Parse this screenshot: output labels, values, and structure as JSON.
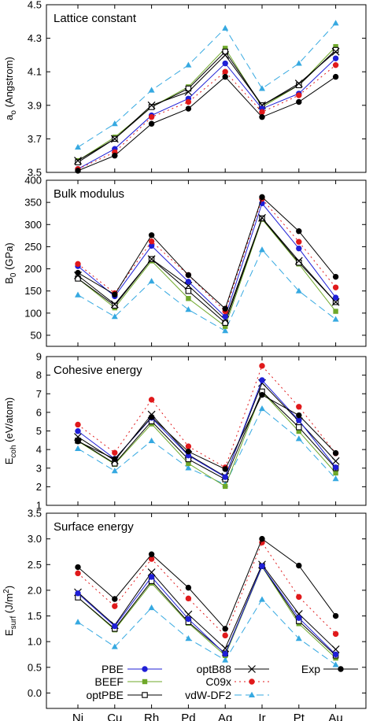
{
  "chart_data": {
    "type": "line",
    "categories": [
      "Ni",
      "Cu",
      "Rh",
      "Pd",
      "Ag",
      "Ir",
      "Pt",
      "Au"
    ],
    "legend": {
      "placement": "bottom of last panel",
      "entries": [
        "PBE",
        "optB88",
        "Exp",
        "BEEF",
        "C09x",
        "optPBE",
        "vdW-DF2"
      ]
    },
    "styles": {
      "PBE": {
        "color": "#1f1fd6",
        "marker": "filled-circle",
        "dash": "solid"
      },
      "optB88": {
        "color": "#000000",
        "marker": "x",
        "dash": "solid"
      },
      "Exp": {
        "color": "#000000",
        "marker": "filled-circle",
        "dash": "solid"
      },
      "BEEF": {
        "color": "#6fa82a",
        "marker": "filled-square",
        "dash": "solid"
      },
      "C09x": {
        "color": "#e0191b",
        "marker": "filled-circle",
        "dash": "dotted"
      },
      "optPBE": {
        "color": "#000000",
        "marker": "open-square",
        "dash": "solid"
      },
      "vdW-DF2": {
        "color": "#36a9e1",
        "marker": "filled-triangle",
        "dash": "dashed"
      }
    },
    "panels": [
      {
        "title": "Lattice constant",
        "ylabel_main": "a",
        "ylabel_sub": "o",
        "ylabel_rest": " (Angstrom)",
        "ylim": [
          3.5,
          4.5
        ],
        "yticks": [
          "3.5",
          "3.7",
          "3.9",
          "4.1",
          "4.3",
          "4.5"
        ],
        "series": [
          {
            "name": "vdW-DF2",
            "values": [
              3.65,
              3.79,
              3.99,
              4.14,
              4.36,
              4.0,
              4.15,
              4.39
            ]
          },
          {
            "name": "BEEF",
            "values": [
              3.57,
              3.71,
              3.89,
              4.01,
              4.24,
              3.89,
              4.02,
              4.25
            ]
          },
          {
            "name": "optPBE",
            "values": [
              3.56,
              3.7,
              3.89,
              4.0,
              4.22,
              3.9,
              4.02,
              4.23
            ]
          },
          {
            "name": "optB88",
            "values": [
              3.57,
              3.7,
              3.9,
              3.98,
              4.2,
              3.9,
              4.03,
              4.22
            ]
          },
          {
            "name": "PBE",
            "values": [
              3.52,
              3.64,
              3.84,
              3.94,
              4.15,
              3.88,
              3.97,
              4.18
            ]
          },
          {
            "name": "C09x",
            "values": [
              3.52,
              3.62,
              3.83,
              3.92,
              4.1,
              3.86,
              3.96,
              4.14
            ]
          },
          {
            "name": "Exp",
            "values": [
              3.51,
              3.6,
              3.79,
              3.88,
              4.07,
              3.83,
              3.92,
              4.07
            ]
          }
        ]
      },
      {
        "title": "Bulk modulus",
        "ylabel_main": "B",
        "ylabel_sub": "0",
        "ylabel_rest": " (GPa)",
        "ylim": [
          25,
          400
        ],
        "yticks": [
          "50",
          "100",
          "150",
          "200",
          "250",
          "300",
          "350",
          "400"
        ],
        "series": [
          {
            "name": "vdW-DF2",
            "values": [
              141,
              92,
              172,
              108,
              60,
              243,
              150,
              86
            ]
          },
          {
            "name": "BEEF",
            "values": [
              178,
              112,
              218,
              133,
              70,
              312,
              211,
              104
            ]
          },
          {
            "name": "optPBE",
            "values": [
              178,
              117,
              222,
              150,
              78,
              314,
              214,
              125
            ]
          },
          {
            "name": "optB88",
            "values": [
              185,
              120,
              222,
              162,
              85,
              315,
              218,
              125
            ]
          },
          {
            "name": "PBE",
            "values": [
              206,
              138,
              252,
              171,
              92,
              348,
              246,
              135
            ]
          },
          {
            "name": "C09x",
            "values": [
              211,
              145,
              262,
              186,
              104,
              358,
              261,
              158
            ]
          },
          {
            "name": "Exp",
            "values": [
              191,
              142,
              276,
              186,
              110,
              362,
              285,
              182
            ]
          }
        ]
      },
      {
        "title": "Cohesive energy",
        "ylabel_main": "E",
        "ylabel_sub": "coh",
        "ylabel_rest": " (eV/atom)",
        "ylim": [
          1,
          9
        ],
        "yticks": [
          "1",
          "2",
          "3",
          "4",
          "5",
          "6",
          "7",
          "8",
          "9"
        ],
        "series": [
          {
            "name": "vdW-DF2",
            "values": [
              4.05,
              2.85,
              4.47,
              3.01,
              2.12,
              6.2,
              4.58,
              2.43
            ]
          },
          {
            "name": "BEEF",
            "values": [
              4.45,
              3.21,
              5.38,
              3.25,
              2.02,
              7.1,
              4.98,
              2.74
            ]
          },
          {
            "name": "optPBE",
            "values": [
              4.48,
              3.25,
              5.52,
              3.48,
              2.4,
              7.12,
              5.2,
              3.0
            ]
          },
          {
            "name": "optB88",
            "values": [
              4.68,
              3.41,
              5.88,
              3.72,
              2.55,
              7.58,
              5.52,
              3.38
            ]
          },
          {
            "name": "PBE",
            "values": [
              4.99,
              3.5,
              5.71,
              3.68,
              2.52,
              7.73,
              5.57,
              3.04
            ]
          },
          {
            "name": "C09x",
            "values": [
              5.34,
              3.83,
              6.68,
              4.17,
              3.04,
              8.5,
              6.3,
              3.8
            ]
          },
          {
            "name": "Exp",
            "values": [
              4.44,
              3.49,
              5.75,
              3.89,
              2.95,
              6.94,
              5.84,
              3.81
            ]
          }
        ]
      },
      {
        "title": "Surface energy",
        "ylabel_main": "E",
        "ylabel_sub": "surf",
        "ylabel_rest": " (J/m",
        "ylabel_sup": "2",
        "ylabel_close": ")",
        "ylim": [
          -0.3,
          3.5
        ],
        "yticks": [
          "0.0",
          "0.5",
          "1.0",
          "1.5",
          "2.0",
          "2.5",
          "3.0",
          "3.5"
        ],
        "series": [
          {
            "name": "vdW-DF2",
            "values": [
              1.38,
              0.9,
              1.66,
              1.06,
              0.64,
              1.82,
              1.06,
              0.55
            ]
          },
          {
            "name": "BEEF",
            "values": [
              1.86,
              1.23,
              2.14,
              1.36,
              0.73,
              2.46,
              1.35,
              0.68
            ]
          },
          {
            "name": "optPBE",
            "values": [
              1.86,
              1.25,
              2.18,
              1.38,
              0.77,
              2.47,
              1.4,
              0.73
            ]
          },
          {
            "name": "optB88",
            "values": [
              1.96,
              1.32,
              2.35,
              1.53,
              0.87,
              2.5,
              1.54,
              0.85
            ]
          },
          {
            "name": "PBE",
            "values": [
              1.94,
              1.3,
              2.26,
              1.44,
              0.76,
              2.47,
              1.46,
              0.75
            ]
          },
          {
            "name": "C09x",
            "values": [
              2.33,
              1.69,
              2.61,
              1.84,
              1.12,
              2.93,
              1.87,
              1.15
            ]
          },
          {
            "name": "Exp",
            "values": [
              2.45,
              1.83,
              2.7,
              2.05,
              1.25,
              3.0,
              2.48,
              1.5
            ]
          }
        ]
      }
    ]
  }
}
